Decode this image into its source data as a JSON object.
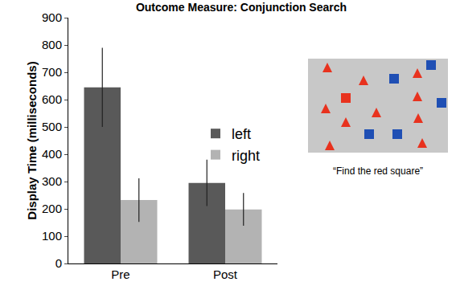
{
  "chart_data": {
    "type": "bar",
    "title": "Outcome Measure: Conjunction Search",
    "y_label": "Display Time (milliseconds)",
    "categories": [
      "Pre",
      "Post"
    ],
    "series": [
      {
        "name": "left",
        "color": "#595959",
        "values": [
          645,
          295
        ],
        "error": [
          145,
          85
        ]
      },
      {
        "name": "right",
        "color": "#b3b3b3",
        "values": [
          232,
          198
        ],
        "error": [
          80,
          60
        ]
      }
    ],
    "ylim": [
      0,
      900
    ],
    "yticks": [
      0,
      100,
      200,
      300,
      400,
      500,
      600,
      700,
      800,
      900
    ],
    "grid": false,
    "legend": "right",
    "annotations": [
      "“Find the red square”"
    ]
  }
}
